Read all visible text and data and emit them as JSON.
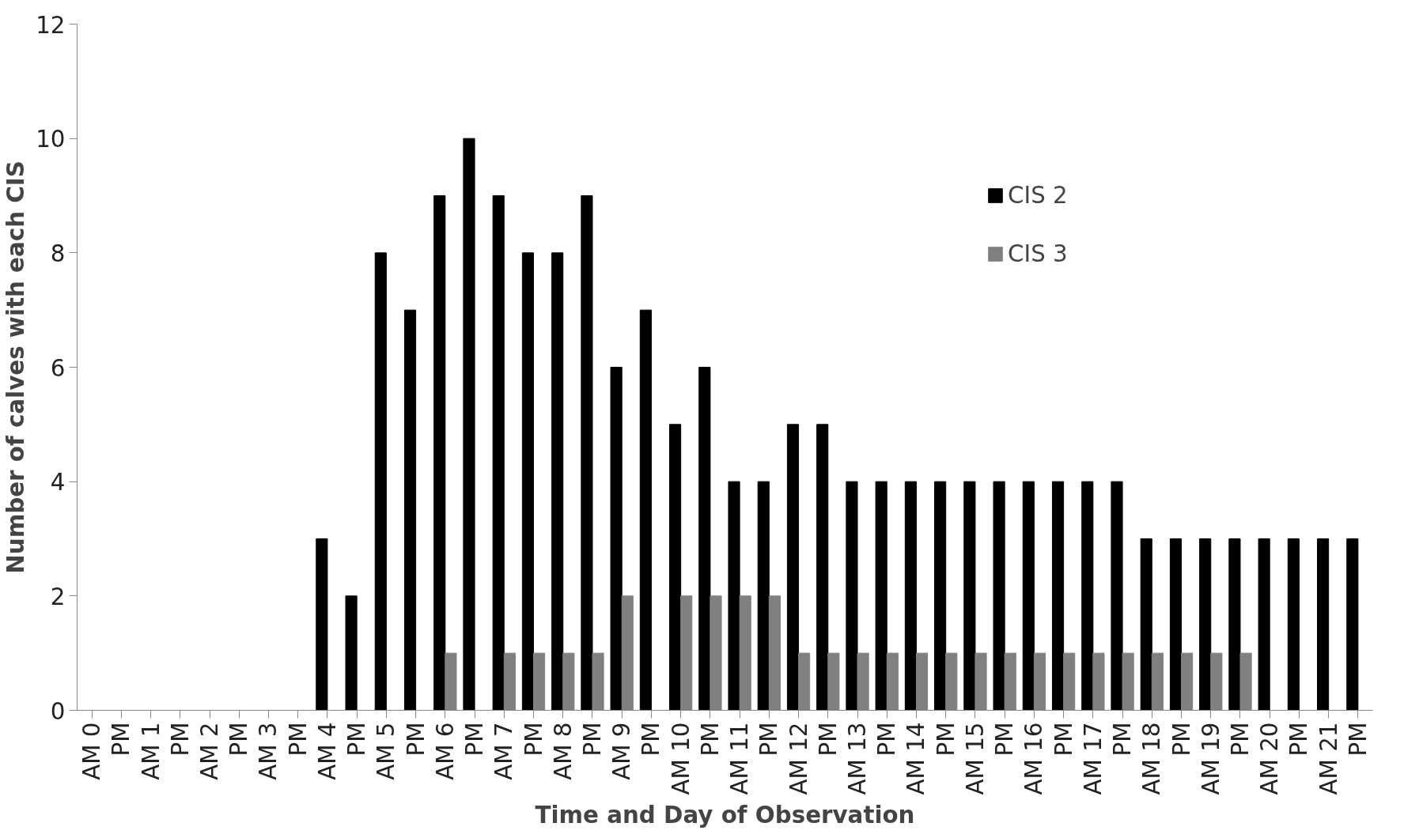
{
  "chart_data": {
    "type": "bar",
    "xlabel": "Time and Day of Observation",
    "ylabel": "Number of calves with each CIS",
    "categories": [
      "AM 0",
      "PM",
      "AM 1",
      "PM",
      "AM 2",
      "PM",
      "AM 3",
      "PM",
      "AM 4",
      "PM",
      "AM 5",
      "PM",
      "AM 6",
      "PM",
      "AM 7",
      "PM",
      "AM 8",
      "PM",
      "AM 9",
      "PM",
      "AM 10",
      "PM",
      "AM 11",
      "PM",
      "AM 12",
      "PM",
      "AM 13",
      "PM",
      "AM 14",
      "PM",
      "AM 15",
      "PM",
      "AM 16",
      "PM",
      "AM 17",
      "PM",
      "AM 18",
      "PM",
      "AM 19",
      "PM",
      "AM 20",
      "PM",
      "AM 21",
      "PM"
    ],
    "series": [
      {
        "name": "CIS 2",
        "color": "#000000",
        "values": [
          0,
          0,
          0,
          0,
          0,
          0,
          0,
          0,
          3,
          2,
          8,
          7,
          9,
          10,
          9,
          8,
          8,
          9,
          6,
          7,
          5,
          6,
          4,
          4,
          5,
          5,
          4,
          4,
          4,
          4,
          4,
          4,
          4,
          4,
          4,
          4,
          3,
          3,
          3,
          3,
          3,
          3,
          3,
          3
        ]
      },
      {
        "name": "CIS 3",
        "color": "#808080",
        "values": [
          0,
          0,
          0,
          0,
          0,
          0,
          0,
          0,
          0,
          0,
          0,
          0,
          1,
          0,
          1,
          1,
          1,
          1,
          2,
          0,
          2,
          2,
          2,
          2,
          1,
          1,
          1,
          1,
          1,
          1,
          1,
          1,
          1,
          1,
          1,
          1,
          1,
          1,
          1,
          1,
          0,
          0,
          0,
          0
        ]
      }
    ],
    "ylim": [
      0,
      12
    ],
    "yticks": [
      0,
      2,
      4,
      6,
      8,
      10,
      12
    ],
    "grid": false,
    "legend": "top right"
  }
}
